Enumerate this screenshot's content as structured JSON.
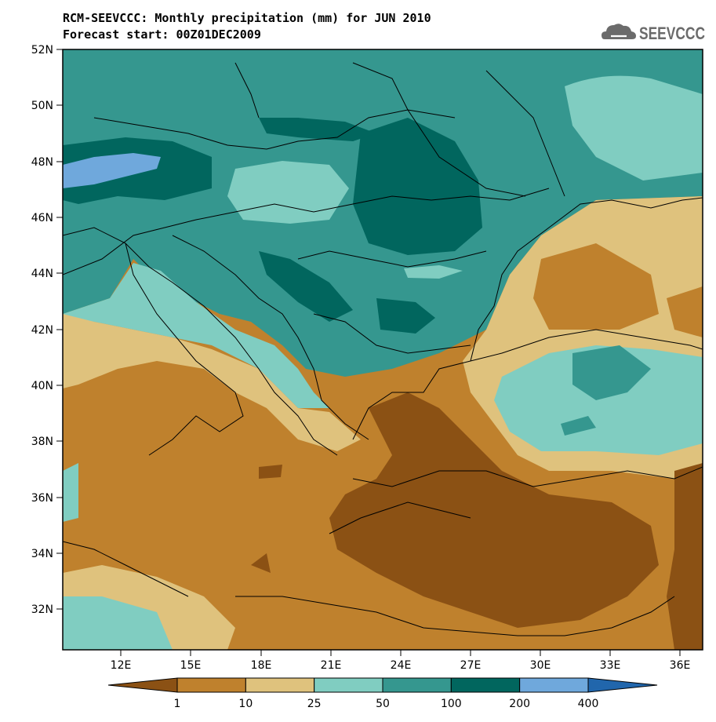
{
  "header": {
    "title_line1": "RCM-SEEVCCC: Monthly precipitation (mm) for JUN 2010",
    "title_line2": "Forecast start: 00Z01DEC2009",
    "logo_text": "SEEVCCC",
    "logo_icon": "cloud-icon"
  },
  "map": {
    "lat_ticks": [
      "52N",
      "50N",
      "48N",
      "46N",
      "44N",
      "42N",
      "40N",
      "38N",
      "36N",
      "34N",
      "32N"
    ],
    "lon_ticks": [
      "12E",
      "15E",
      "18E",
      "21E",
      "24E",
      "27E",
      "30E",
      "33E",
      "36E"
    ]
  },
  "colorbar": {
    "labels": [
      "1",
      "10",
      "25",
      "50",
      "100",
      "200",
      "400"
    ],
    "colors": [
      "#8b5114",
      "#bf812d",
      "#dfc27d",
      "#80cdc1",
      "#35978f",
      "#01665e",
      "#6fa8dc",
      "#2166ac"
    ]
  }
}
